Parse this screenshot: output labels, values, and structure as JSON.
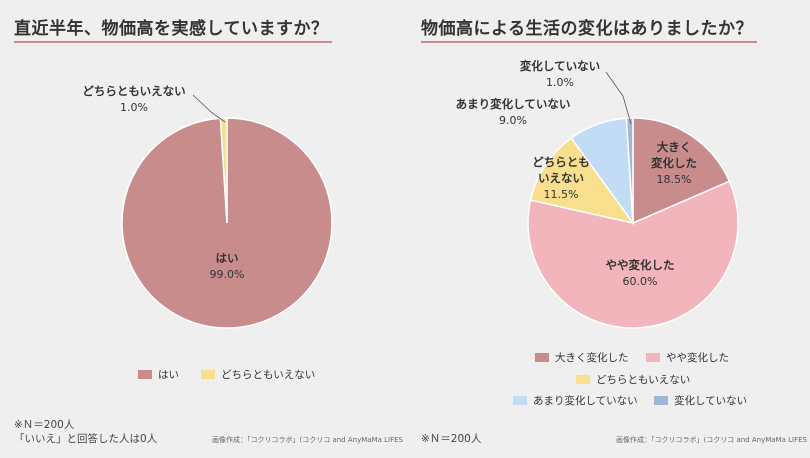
{
  "colors": {
    "background": "#efefef",
    "accent_rule": "#c98c8c",
    "strong_change": "#c98c8c",
    "slight_change": "#f2b5bb",
    "neither": "#f7df8e",
    "not_much": "#c3dcf5",
    "no_change": "#9fb6d4"
  },
  "chart_data": [
    {
      "type": "pie",
      "title": "直近半年、物価高を実感していますか？",
      "slices": [
        {
          "label": "はい",
          "value": 99.0,
          "value_label": "99.0%",
          "color": "#c98c8c"
        },
        {
          "label": "どちらともいえない",
          "value": 1.0,
          "value_label": "1.0%",
          "color": "#f7df8e"
        }
      ],
      "legend": [
        "はい",
        "どちらともいえない"
      ],
      "legend_position": "bottom"
    },
    {
      "type": "pie",
      "title": "物価高による生活の変化はありましたか？",
      "slices": [
        {
          "label": "大きく変化した",
          "value": 18.5,
          "value_label": "18.5%",
          "color": "#c98c8c"
        },
        {
          "label": "やや変化した",
          "value": 60.0,
          "value_label": "60.0%",
          "color": "#f2b5bb"
        },
        {
          "label": "どちらともいえない",
          "value": 11.5,
          "value_label": "11.5%",
          "color": "#f7df8e"
        },
        {
          "label": "あまり変化していない",
          "value": 9.0,
          "value_label": "9.0%",
          "color": "#c3dcf5"
        },
        {
          "label": "変化していない",
          "value": 1.0,
          "value_label": "1.0%",
          "color": "#9fb6d4"
        }
      ],
      "legend": [
        "大きく変化した",
        "やや変化した",
        "どちらともいえない",
        "あまり変化していない",
        "変化していない"
      ],
      "legend_position": "bottom"
    }
  ],
  "left": {
    "title": "直近半年、物価高を実感していますか？",
    "note_line1": "※Ｎ＝200人",
    "note_line2": "「いいえ」と回答した人は0人",
    "credit": "画像作成：「コクリコラボ」(コクリコ and AnyMaMa LIFES"
  },
  "right": {
    "title": "物価高による生活の変化はありましたか？",
    "note": "※Ｎ＝200人",
    "credit": "画像作成：「コクリコラボ」(コクリコ and AnyMaMa LIFES"
  }
}
